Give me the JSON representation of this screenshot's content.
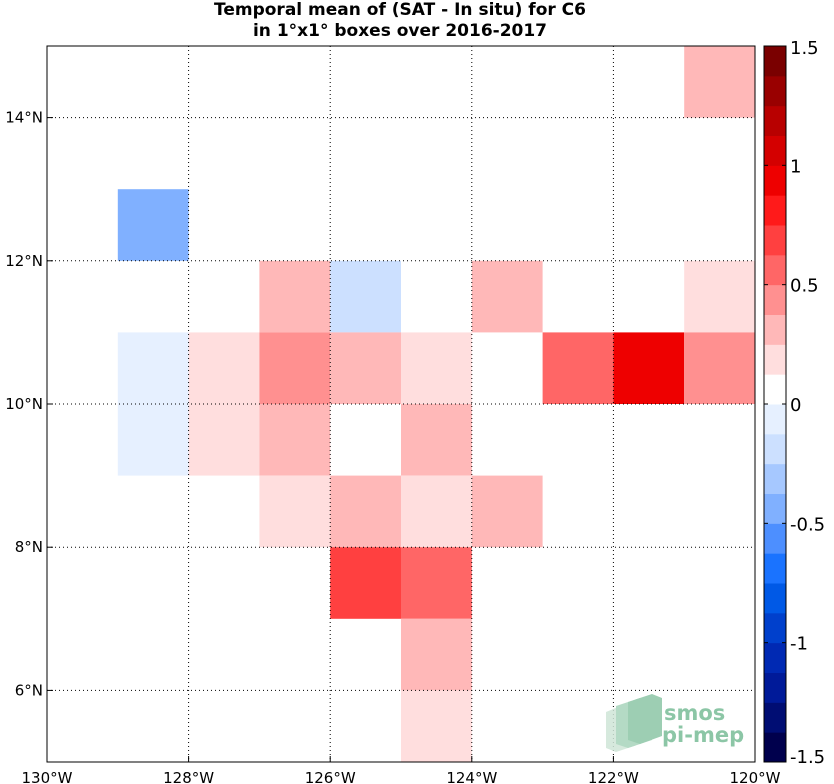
{
  "chart_data": {
    "type": "heatmap",
    "title_line1": "Temporal mean of (SAT - In situ) for C6",
    "title_line2": "in 1°x1° boxes over 2016-2017",
    "xlim": [
      -130,
      -120
    ],
    "ylim": [
      5,
      15
    ],
    "x_ticks": [
      {
        "value": -130,
        "label": "130°W"
      },
      {
        "value": -128,
        "label": "128°W"
      },
      {
        "value": -126,
        "label": "126°W"
      },
      {
        "value": -124,
        "label": "124°W"
      },
      {
        "value": -122,
        "label": "122°W"
      },
      {
        "value": -120,
        "label": "120°W"
      }
    ],
    "y_ticks": [
      {
        "value": 6,
        "label": "6°N"
      },
      {
        "value": 8,
        "label": "8°N"
      },
      {
        "value": 10,
        "label": "10°N"
      },
      {
        "value": 12,
        "label": "12°N"
      },
      {
        "value": 14,
        "label": "14°N"
      }
    ],
    "grid": true,
    "cells": [
      {
        "lon": -121,
        "lat": 14,
        "value": 0.3
      },
      {
        "lon": -129,
        "lat": 12,
        "value": -0.4
      },
      {
        "lon": -127,
        "lat": 11,
        "value": 0.3
      },
      {
        "lon": -126,
        "lat": 11,
        "value": -0.2
      },
      {
        "lon": -124,
        "lat": 11,
        "value": 0.3
      },
      {
        "lon": -121,
        "lat": 11,
        "value": 0.15
      },
      {
        "lon": -129,
        "lat": 10,
        "value": -0.1
      },
      {
        "lon": -128,
        "lat": 10,
        "value": 0.15
      },
      {
        "lon": -127,
        "lat": 10,
        "value": 0.45
      },
      {
        "lon": -126,
        "lat": 10,
        "value": 0.3
      },
      {
        "lon": -125,
        "lat": 10,
        "value": 0.15
      },
      {
        "lon": -123,
        "lat": 10,
        "value": 0.5
      },
      {
        "lon": -122,
        "lat": 10,
        "value": 0.9
      },
      {
        "lon": -121,
        "lat": 10,
        "value": 0.45
      },
      {
        "lon": -129,
        "lat": 9,
        "value": -0.1
      },
      {
        "lon": -128,
        "lat": 9,
        "value": 0.15
      },
      {
        "lon": -127,
        "lat": 9,
        "value": 0.35
      },
      {
        "lon": -125,
        "lat": 9,
        "value": 0.3
      },
      {
        "lon": -127,
        "lat": 8,
        "value": 0.15
      },
      {
        "lon": -126,
        "lat": 8,
        "value": 0.3
      },
      {
        "lon": -125,
        "lat": 8,
        "value": 0.15
      },
      {
        "lon": -124,
        "lat": 8,
        "value": 0.3
      },
      {
        "lon": -126,
        "lat": 7,
        "value": 0.7
      },
      {
        "lon": -125,
        "lat": 7,
        "value": 0.6
      },
      {
        "lon": -125,
        "lat": 6,
        "value": 0.3
      },
      {
        "lon": -125,
        "lat": 5,
        "value": 0.15
      }
    ],
    "colorbar": {
      "min": -1.5,
      "max": 1.5,
      "ticks": [
        {
          "value": 1.5,
          "label": "1.5"
        },
        {
          "value": 1,
          "label": "1"
        },
        {
          "value": 0.5,
          "label": "0.5"
        },
        {
          "value": 0,
          "label": "0"
        },
        {
          "value": -0.5,
          "label": "-0.5"
        },
        {
          "value": -1,
          "label": "-1"
        },
        {
          "value": -1.5,
          "label": "-1.5"
        }
      ],
      "colors": [
        "#00004d",
        "#000d73",
        "#001a99",
        "#0029b3",
        "#0040cc",
        "#0059e6",
        "#1a73ff",
        "#4d8fff",
        "#80b0ff",
        "#a6c8ff",
        "#cce0ff",
        "#e6f0ff",
        "#ffffff",
        "#ffdede",
        "#ffb8b8",
        "#ff9090",
        "#ff6666",
        "#ff4040",
        "#ff1a1a",
        "#ee0000",
        "#d40000",
        "#b80000",
        "#990000",
        "#7a0000"
      ]
    }
  },
  "logo": {
    "line1": "smos",
    "line2": "pi-mep",
    "color": "#8cc6a6"
  }
}
